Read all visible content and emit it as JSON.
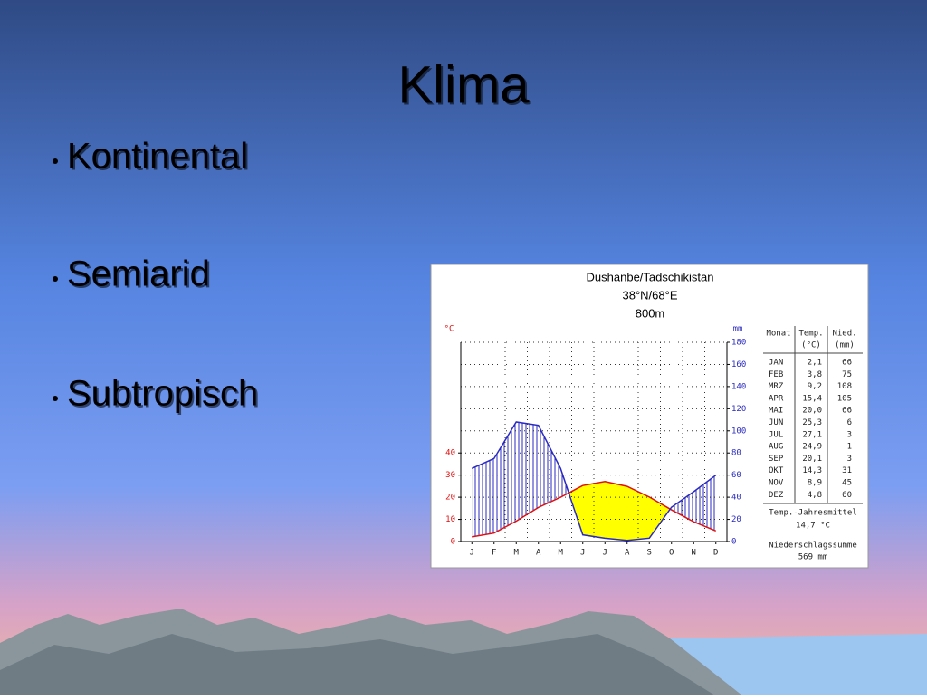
{
  "slide": {
    "title": "Klima",
    "bullets": [
      "Kontinental",
      "Semiarid",
      "Subtropisch"
    ]
  },
  "chart_data": {
    "type": "climate",
    "title": "Dushanbe/Tadschikistan",
    "coordinates": "38°N/68°E",
    "elevation": "800m",
    "categories": [
      "J",
      "F",
      "M",
      "A",
      "M",
      "J",
      "J",
      "A",
      "S",
      "O",
      "N",
      "D"
    ],
    "table_month_header": "Monat",
    "table_months": [
      "JAN",
      "FEB",
      "MRZ",
      "APR",
      "MAI",
      "JUN",
      "JUL",
      "AUG",
      "SEP",
      "OKT",
      "NOV",
      "DEZ"
    ],
    "series": [
      {
        "name": "Temp.",
        "unit_label": "(°C)",
        "axis_unit": "°C",
        "color": "#e01010",
        "values": [
          2.1,
          3.8,
          9.2,
          15.4,
          20.0,
          25.3,
          27.1,
          24.9,
          20.1,
          14.3,
          8.9,
          4.8
        ],
        "value_labels": [
          "2,1",
          "3,8",
          "9,2",
          "15,4",
          "20,0",
          "25,3",
          "27,1",
          "24,9",
          "20,1",
          "14,3",
          "8,9",
          "4,8"
        ]
      },
      {
        "name": "Nied.",
        "unit_label": "(mm)",
        "axis_unit": "mm",
        "color": "#2a2ac0",
        "axis": "y2",
        "values": [
          66,
          75,
          108,
          105,
          66,
          6,
          3,
          1,
          3,
          31,
          45,
          60
        ]
      }
    ],
    "arid_color": "#ffff00",
    "ylim": [
      0,
      90
    ],
    "yticks": [
      0,
      10,
      20,
      30,
      40
    ],
    "y2lim": [
      0,
      180
    ],
    "y2ticks": [
      0,
      20,
      40,
      60,
      80,
      100,
      120,
      140,
      160,
      180
    ],
    "grid": true,
    "annual_mean_label": "Temp.-Jahresmittel",
    "annual_mean": {
      "value": 14.7,
      "label": "14,7 °C"
    },
    "precip_total_label": "Niederschlagssumme",
    "precip_total": {
      "value": 569,
      "label": "569 mm"
    }
  }
}
